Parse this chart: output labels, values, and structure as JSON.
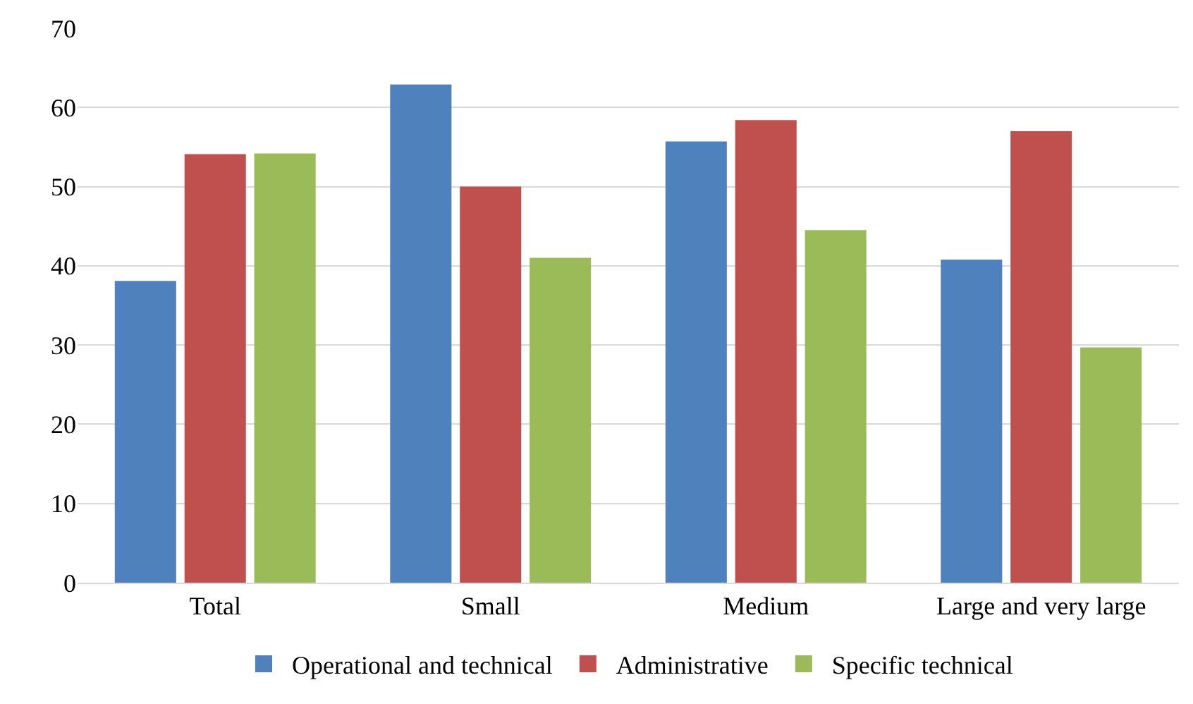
{
  "chart_data": {
    "type": "bar",
    "categories": [
      "Total",
      "Small",
      "Medium",
      "Large and very large"
    ],
    "series": [
      {
        "name": "Operational and technical",
        "color": "#4f81bd",
        "values": [
          38.1,
          62.9,
          55.7,
          40.8
        ]
      },
      {
        "name": "Administrative",
        "color": "#c0504d",
        "values": [
          54.1,
          50.0,
          58.4,
          57.0
        ]
      },
      {
        "name": "Specific technical",
        "color": "#9bbb59",
        "values": [
          54.2,
          41.0,
          44.5,
          29.7
        ]
      }
    ],
    "ylim": [
      0,
      70
    ],
    "yticks": [
      0,
      10,
      20,
      30,
      40,
      50,
      60,
      70
    ],
    "grid": "y",
    "legend": "bottom"
  }
}
